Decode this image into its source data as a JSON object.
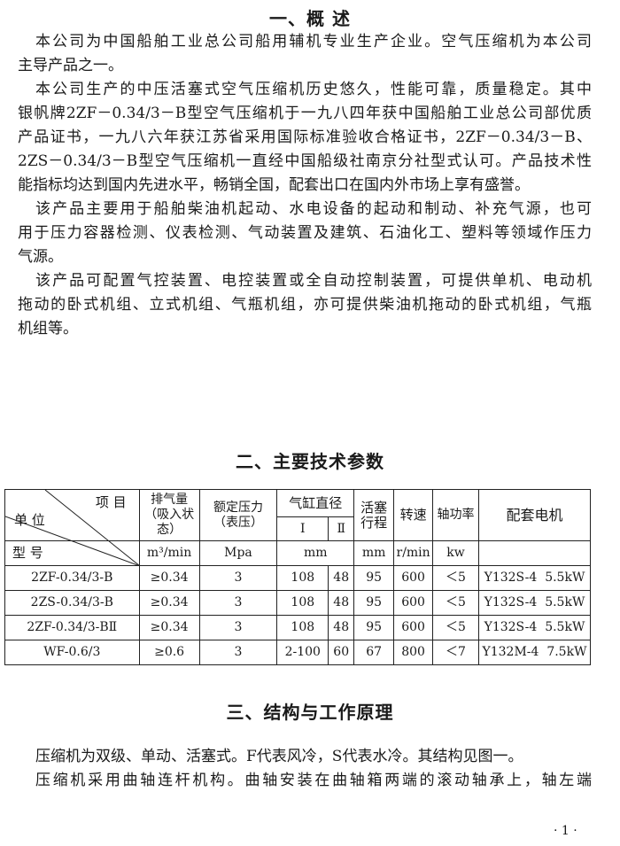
{
  "section1": {
    "title": "一、概 述",
    "paragraphs": [
      [
        "本公司为中国船舶工业总公司船用辅机专业生产企业。空气压缩机为本公司",
        "主导产品之一。"
      ],
      [
        "本公司生产的中压活塞式空气压缩机历史悠久，性能可靠，质量稳定。其中",
        "银帆牌2ZF－0.34/3－B型空气压缩机于一九八四年获中国船舶工业总公司部优质",
        "产品证书，一九八六年获江苏省采用国际标准验收合格证书，2ZF－0.34/3－B、",
        "2ZS－0.34/3－B型空气压缩机一直经中国船级社南京分社型式认可。产品技术性",
        "能指标均达到国内先进水平，畅销全国，配套出口在国内外市场上享有盛誉。"
      ],
      [
        "该产品主要用于船舶柴油机起动、水电设备的起动和制动、补充气源，也可",
        "用于压力容器检测、仪表检测、气动装置及建筑、石油化工、塑料等领域作压力",
        "气源。"
      ],
      [
        "该产品可配置气控装置、电控装置或全自动控制装置，可提供单机、电动机",
        "拖动的卧式机组、立式机组、气瓶机组，亦可提供柴油机拖动的卧式机组，气瓶",
        "机组等。"
      ]
    ]
  },
  "section2": {
    "title": "二、主要技术参数",
    "table": {
      "corner": {
        "top": "项 目",
        "mid": "单 位",
        "bottom": "型 号"
      },
      "headers": {
        "displacement": [
          "排气量",
          "（吸入状态）"
        ],
        "pressure": [
          "额定压力",
          "（表压）"
        ],
        "bore": "气缸直径",
        "bore1": "Ⅰ",
        "bore2": "Ⅱ",
        "stroke": [
          "活塞",
          "行程"
        ],
        "speed": "转速",
        "power": "轴功率",
        "motor": "配套电机"
      },
      "units": {
        "displacement": "m³/min",
        "pressure": "Mpa",
        "bore": "mm",
        "stroke": "mm",
        "speed": "r/min",
        "power": "kw",
        "motor": ""
      },
      "rows": [
        [
          "2ZF-0.34/3-B",
          "≥0.34",
          "3",
          "108",
          "48",
          "95",
          "600",
          "＜5",
          "Y132S-4  5.5kW"
        ],
        [
          "2ZS-0.34/3-B",
          "≥0.34",
          "3",
          "108",
          "48",
          "95",
          "600",
          "＜5",
          "Y132S-4  5.5kW"
        ],
        [
          "2ZF-0.34/3-BⅡ",
          "≥0.34",
          "3",
          "108",
          "48",
          "95",
          "600",
          "＜5",
          "Y132S-4  5.5kW"
        ],
        [
          "WF-0.6/3",
          "≥0.6",
          "3",
          "2-100",
          "60",
          "67",
          "800",
          "＜7",
          "Y132M-4  7.5kW"
        ]
      ]
    }
  },
  "section3": {
    "title": "三、结构与工作原理",
    "lines": [
      "压缩机为双级、单动、活塞式。F代表风冷，S代表水冷。其结构见图一。",
      "压缩机采用曲轴连杆机构。曲轴安装在曲轴箱两端的滚动轴承上，轴左端"
    ]
  },
  "page_number": "· 1 ·"
}
